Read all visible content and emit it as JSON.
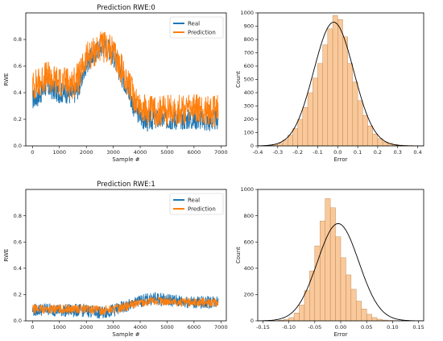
{
  "chart_data": [
    {
      "type": "line",
      "title": "Prediction RWE:0",
      "xlabel": "Sample #",
      "ylabel": "RWE",
      "xlim": [
        -250,
        7200
      ],
      "ylim": [
        0.0,
        1.0
      ],
      "xticks": [
        0,
        1000,
        2000,
        3000,
        4000,
        5000,
        6000,
        7000
      ],
      "yticks": [
        0.0,
        0.2,
        0.4,
        0.6,
        0.8
      ],
      "legend_position": "top-right",
      "series": [
        {
          "name": "Real",
          "color": "#1f77b4",
          "x": [
            0,
            250,
            500,
            750,
            1000,
            1250,
            1500,
            1750,
            2000,
            2250,
            2500,
            2750,
            3000,
            3250,
            3500,
            3750,
            4000,
            4250,
            4500,
            4750,
            5000,
            5250,
            5500,
            5750,
            6000,
            6250,
            6500,
            6750,
            6900
          ],
          "y": [
            0.35,
            0.38,
            0.45,
            0.42,
            0.4,
            0.4,
            0.38,
            0.45,
            0.62,
            0.68,
            0.74,
            0.75,
            0.68,
            0.55,
            0.45,
            0.3,
            0.22,
            0.18,
            0.2,
            0.2,
            0.2,
            0.2,
            0.2,
            0.2,
            0.2,
            0.2,
            0.18,
            0.19,
            0.2
          ],
          "noise": 0.08
        },
        {
          "name": "Prediction",
          "color": "#ff7f0e",
          "x": [
            0,
            250,
            500,
            750,
            1000,
            1250,
            1500,
            1750,
            2000,
            2250,
            2500,
            2750,
            3000,
            3250,
            3500,
            3750,
            4000,
            4250,
            4500,
            4750,
            5000,
            5250,
            5500,
            5750,
            6000,
            6250,
            6500,
            6750,
            6900
          ],
          "y": [
            0.45,
            0.48,
            0.52,
            0.5,
            0.48,
            0.48,
            0.47,
            0.52,
            0.66,
            0.7,
            0.74,
            0.74,
            0.7,
            0.6,
            0.5,
            0.38,
            0.3,
            0.26,
            0.26,
            0.26,
            0.26,
            0.27,
            0.27,
            0.27,
            0.27,
            0.27,
            0.26,
            0.26,
            0.27
          ],
          "noise": 0.12
        }
      ]
    },
    {
      "type": "bar",
      "xlabel": "Error",
      "ylabel": "Count",
      "xlim": [
        -0.4,
        0.43
      ],
      "ylim": [
        0,
        1000
      ],
      "xticks": [
        -0.4,
        -0.3,
        -0.2,
        -0.1,
        0.0,
        0.1,
        0.2,
        0.3,
        0.4
      ],
      "xtick_labels": [
        "-0.4",
        "-0.3",
        "-0.2",
        "-0.1",
        "0.0",
        "0.1",
        "0.2",
        "0.3",
        "0.4"
      ],
      "yticks": [
        0,
        100,
        200,
        300,
        400,
        500,
        600,
        700,
        800,
        900,
        1000
      ],
      "bin_start": -0.35,
      "bin_width": 0.025,
      "values": [
        5,
        10,
        20,
        45,
        80,
        130,
        200,
        290,
        400,
        510,
        620,
        760,
        880,
        980,
        950,
        820,
        620,
        480,
        340,
        230,
        150,
        90,
        55,
        30,
        20,
        10,
        6,
        4,
        3
      ],
      "bar_color": "#f9c99b",
      "curve": {
        "type": "normal-fit",
        "mean": -0.02,
        "sd": 0.1,
        "peak": 930,
        "color": "#000000"
      }
    },
    {
      "type": "line",
      "title": "Prediction RWE:1",
      "xlabel": "Sample #",
      "ylabel": "RWE",
      "xlim": [
        -250,
        7200
      ],
      "ylim": [
        0.0,
        1.0
      ],
      "xticks": [
        0,
        1000,
        2000,
        3000,
        4000,
        5000,
        6000,
        7000
      ],
      "yticks": [
        0.0,
        0.2,
        0.4,
        0.6,
        0.8
      ],
      "legend_position": "top-right",
      "series": [
        {
          "name": "Real",
          "color": "#1f77b4",
          "x": [
            0,
            500,
            1000,
            1500,
            2000,
            2500,
            3000,
            3500,
            4000,
            4500,
            5000,
            5500,
            6000,
            6500,
            6900
          ],
          "y": [
            0.08,
            0.09,
            0.08,
            0.08,
            0.08,
            0.06,
            0.08,
            0.11,
            0.15,
            0.17,
            0.16,
            0.15,
            0.14,
            0.14,
            0.15
          ],
          "noise": 0.05
        },
        {
          "name": "Prediction",
          "color": "#ff7f0e",
          "x": [
            0,
            500,
            1000,
            1500,
            2000,
            2500,
            3000,
            3500,
            4000,
            4500,
            5000,
            5500,
            6000,
            6500,
            6900
          ],
          "y": [
            0.09,
            0.09,
            0.09,
            0.09,
            0.09,
            0.08,
            0.09,
            0.11,
            0.14,
            0.15,
            0.15,
            0.14,
            0.14,
            0.14,
            0.14
          ],
          "noise": 0.035
        }
      ]
    },
    {
      "type": "bar",
      "xlabel": "Error",
      "ylabel": "Count",
      "xlim": [
        -0.16,
        0.16
      ],
      "ylim": [
        0,
        1000
      ],
      "xticks": [
        -0.15,
        -0.1,
        -0.05,
        0.0,
        0.05,
        0.1,
        0.15
      ],
      "xtick_labels": [
        "-0.15",
        "-0.10",
        "-0.05",
        "0.00",
        "0.05",
        "0.10",
        "0.15"
      ],
      "yticks": [
        0,
        200,
        400,
        600,
        800,
        1000
      ],
      "bin_start": -0.12,
      "bin_width": 0.01,
      "values": [
        5,
        10,
        25,
        60,
        120,
        230,
        380,
        570,
        760,
        930,
        860,
        640,
        480,
        350,
        240,
        150,
        90,
        50,
        25,
        12,
        6,
        3,
        2,
        1
      ],
      "bar_color": "#f9c99b",
      "curve": {
        "type": "normal-fit",
        "mean": -0.005,
        "sd": 0.04,
        "peak": 740,
        "color": "#000000"
      }
    }
  ]
}
